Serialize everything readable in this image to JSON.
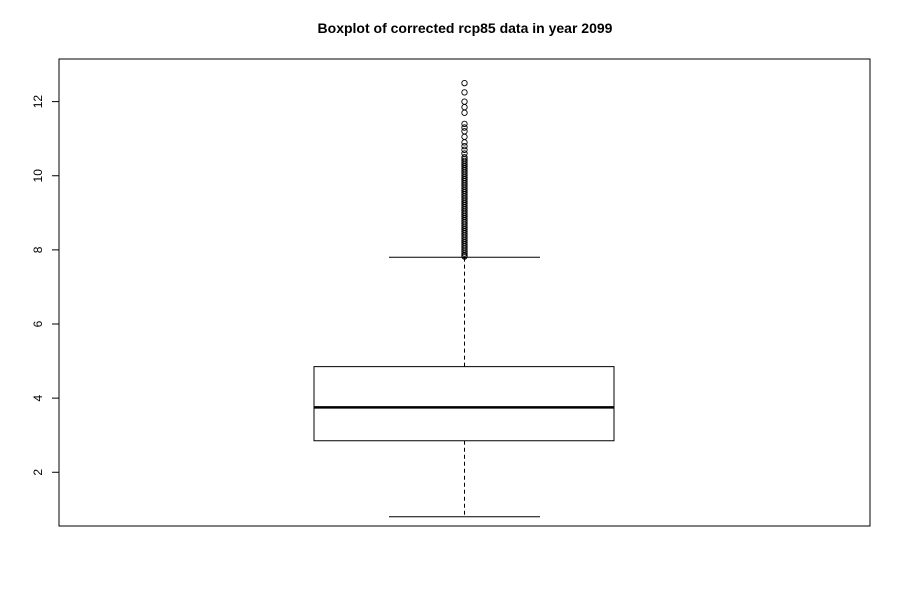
{
  "chart_data": {
    "type": "boxplot",
    "title": "Boxplot of corrected rcp85 data in year 2099",
    "xlabel": "",
    "ylabel": "",
    "ylim": [
      0.55,
      13.15
    ],
    "yticks": [
      2,
      4,
      6,
      8,
      10,
      12
    ],
    "box": {
      "min": 0.8,
      "q1": 2.85,
      "median": 3.75,
      "q3": 4.85,
      "whisker_high": 7.8
    },
    "outliers": [
      7.82,
      7.85,
      7.9,
      7.95,
      8.0,
      8.05,
      8.1,
      8.15,
      8.2,
      8.25,
      8.3,
      8.35,
      8.4,
      8.45,
      8.5,
      8.55,
      8.6,
      8.65,
      8.7,
      8.75,
      8.8,
      8.85,
      8.9,
      8.95,
      9.0,
      9.05,
      9.1,
      9.15,
      9.2,
      9.25,
      9.3,
      9.35,
      9.4,
      9.45,
      9.5,
      9.55,
      9.6,
      9.65,
      9.7,
      9.75,
      9.8,
      9.85,
      9.9,
      9.95,
      10.0,
      10.05,
      10.1,
      10.15,
      10.2,
      10.25,
      10.3,
      10.35,
      10.4,
      10.45,
      10.5,
      10.6,
      10.7,
      10.8,
      10.9,
      11.05,
      11.2,
      11.3,
      11.4,
      11.7,
      11.85,
      12.0,
      12.25,
      12.5
    ],
    "grid": false,
    "legend": "none"
  }
}
